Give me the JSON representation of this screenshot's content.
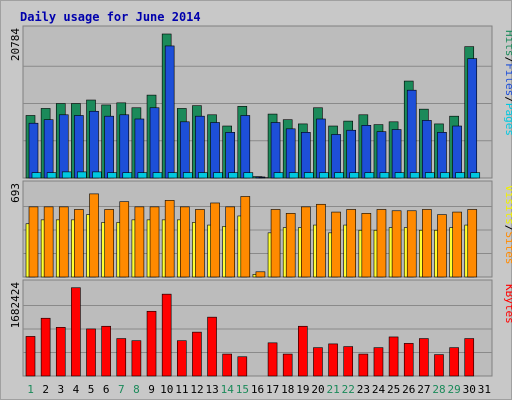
{
  "chart_data": {
    "type": "bar",
    "title": "Daily usage for June 2014",
    "days": [
      "1",
      "2",
      "3",
      "4",
      "5",
      "6",
      "7",
      "8",
      "9",
      "10",
      "11",
      "12",
      "13",
      "14",
      "15",
      "16",
      "17",
      "18",
      "19",
      "20",
      "21",
      "22",
      "23",
      "24",
      "25",
      "26",
      "27",
      "28",
      "29",
      "30",
      "31"
    ],
    "weekend_days": [
      "1",
      "7",
      "8",
      "14",
      "15",
      "21",
      "22",
      "28",
      "29"
    ],
    "panels": [
      {
        "name": "hits-files-pages",
        "max_label": "20784",
        "max_value": 20784,
        "legend": [
          {
            "text": "Pages",
            "color": "#00c8e0"
          },
          {
            "text": "Files",
            "color": "#1d4fd8"
          },
          {
            "text": "Hits",
            "color": "#1b8a5a"
          }
        ],
        "series": [
          {
            "name": "Hits",
            "color": "#1b8a5a",
            "values": [
              8900,
              9900,
              10600,
              10600,
              11100,
              10400,
              10700,
              10000,
              11800,
              20500,
              9900,
              10300,
              9000,
              7400,
              10200,
              200,
              9100,
              8300,
              7700,
              10000,
              7400,
              8100,
              9000,
              7600,
              8000,
              13800,
              9800,
              7700,
              8800,
              18700,
              0
            ]
          },
          {
            "name": "Files",
            "color": "#1d4fd8",
            "values": [
              7800,
              8300,
              9000,
              8900,
              9500,
              8800,
              9000,
              8400,
              10000,
              18800,
              8000,
              8800,
              7900,
              6500,
              8900,
              150,
              7900,
              7000,
              6500,
              8400,
              6200,
              6800,
              7500,
              6600,
              6900,
              12500,
              8200,
              6500,
              7400,
              17000,
              0
            ]
          },
          {
            "name": "Pages",
            "color": "#00c8e0",
            "values": [
              760,
              760,
              870,
              870,
              870,
              760,
              760,
              760,
              760,
              760,
              760,
              760,
              760,
              760,
              760,
              50,
              760,
              760,
              760,
              760,
              760,
              760,
              760,
              760,
              760,
              760,
              760,
              760,
              760,
              760,
              0
            ]
          }
        ]
      },
      {
        "name": "visits-sites",
        "max_label": "693",
        "max_value": 693,
        "legend": [
          {
            "text": "Sites",
            "color": "#ff8a00"
          },
          {
            "text": "Visits",
            "color": "#f0f000"
          }
        ],
        "series": [
          {
            "name": "Visits",
            "color": "#ffff30",
            "values": [
              410,
              440,
              440,
              440,
              480,
              420,
              420,
              440,
              440,
              440,
              440,
              420,
              400,
              390,
              470,
              20,
              340,
              380,
              380,
              400,
              340,
              400,
              360,
              360,
              380,
              380,
              360,
              360,
              380,
              400,
              0
            ]
          },
          {
            "name": "Sites",
            "color": "#ff8a00",
            "values": [
              540,
              540,
              540,
              520,
              640,
              520,
              580,
              540,
              540,
              590,
              540,
              520,
              570,
              540,
              620,
              40,
              520,
              490,
              540,
              560,
              500,
              520,
              490,
              520,
              510,
              510,
              520,
              480,
              500,
              520,
              0
            ]
          }
        ]
      },
      {
        "name": "kbytes",
        "max_label": "1682424",
        "max_value": 1682424,
        "legend": [
          {
            "text": "KBytes",
            "color": "#ff0000"
          }
        ],
        "series": [
          {
            "name": "KBytes",
            "color": "#ff0000",
            "values": [
              740000,
              1080000,
              910000,
              1650000,
              880000,
              930000,
              700000,
              660000,
              1210000,
              1530000,
              660000,
              820000,
              1100000,
              410000,
              360000,
              0,
              620000,
              410000,
              930000,
              530000,
              600000,
              550000,
              410000,
              530000,
              730000,
              610000,
              700000,
              400000,
              530000,
              700000,
              0
            ]
          }
        ]
      }
    ]
  }
}
